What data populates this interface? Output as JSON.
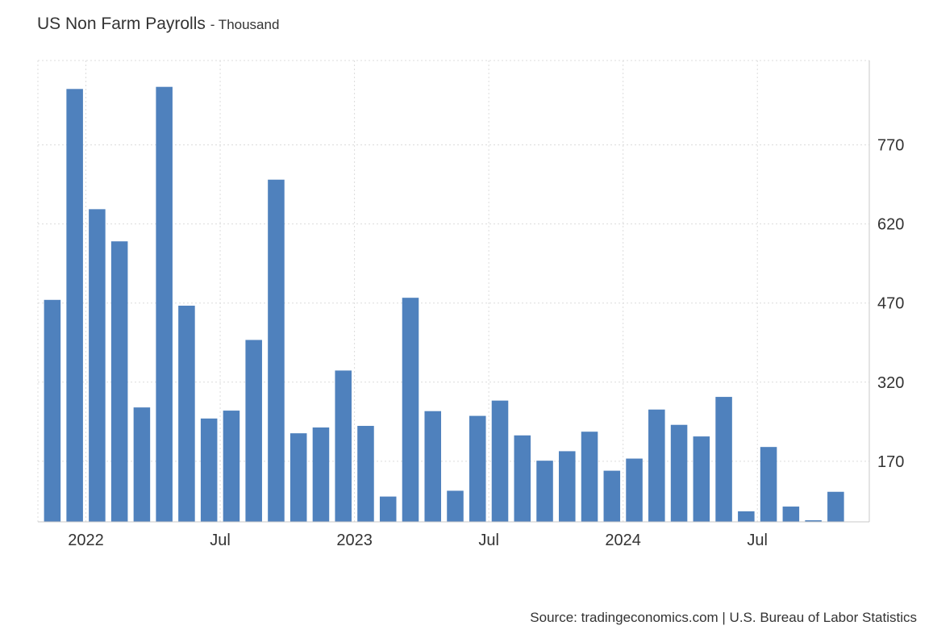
{
  "title": "US Non Farm Payrolls",
  "subtitle": "- Thousand",
  "source": "Source: tradingeconomics.com | U.S. Bureau of Labor Statistics",
  "chart_data": {
    "type": "bar",
    "title": "US Non Farm Payrolls",
    "ylabel": "",
    "xlabel": "",
    "ylim": [
      55,
      930
    ],
    "yticks": [
      170,
      320,
      470,
      620,
      770
    ],
    "grid": true,
    "bar_color": "#4f81bd",
    "categories": [
      "2021-11",
      "2021-12",
      "2022-01",
      "2022-02",
      "2022-03",
      "2022-04",
      "2022-05",
      "2022-06",
      "2022-07",
      "2022-08",
      "2022-09",
      "2022-10",
      "2022-11",
      "2022-12",
      "2023-01",
      "2023-02",
      "2023-03",
      "2023-04",
      "2023-05",
      "2023-06",
      "2023-07",
      "2023-08",
      "2023-09",
      "2023-10",
      "2023-11",
      "2023-12",
      "2024-01",
      "2024-02",
      "2024-03",
      "2024-04",
      "2024-05",
      "2024-06",
      "2024-07",
      "2024-08",
      "2024-09",
      "2024-10",
      "2024-11"
    ],
    "values": [
      476,
      876,
      648,
      587,
      272,
      880,
      465,
      251,
      266,
      400,
      704,
      223,
      234,
      342,
      237,
      103,
      480,
      265,
      114,
      256,
      285,
      219,
      171,
      189,
      226,
      152,
      175,
      268,
      239,
      217,
      292,
      75,
      197,
      84,
      58,
      112,
      0
    ],
    "x_tick_labels": [
      {
        "label": "2022",
        "category": "2022-01"
      },
      {
        "label": "Jul",
        "category": "2022-07"
      },
      {
        "label": "2023",
        "category": "2023-01"
      },
      {
        "label": "Jul",
        "category": "2023-07"
      },
      {
        "label": "2024",
        "category": "2024-01"
      },
      {
        "label": "Jul",
        "category": "2024-07"
      }
    ]
  }
}
